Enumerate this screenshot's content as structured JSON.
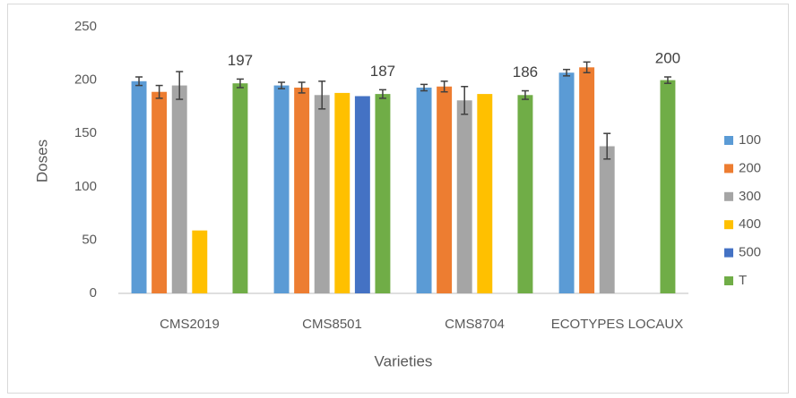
{
  "chart_data": {
    "type": "bar",
    "xlabel": "Varieties",
    "ylabel": "Doses",
    "categories": [
      "CMS2019",
      "CMS8501",
      "CMS8704",
      "ECOTYPES LOCAUX"
    ],
    "series": [
      {
        "name": "100",
        "color": "#5b9bd5",
        "values": [
          199,
          195,
          193,
          207
        ],
        "errors": [
          4,
          3,
          3,
          3
        ]
      },
      {
        "name": "200",
        "color": "#ed7d31",
        "values": [
          189,
          193,
          194,
          212
        ],
        "errors": [
          6,
          5,
          5,
          5
        ]
      },
      {
        "name": "300",
        "color": "#a5a5a5",
        "values": [
          195,
          186,
          181,
          138
        ],
        "errors": [
          13,
          13,
          13,
          12
        ]
      },
      {
        "name": "400",
        "color": "#ffc000",
        "values": [
          59,
          188,
          187,
          null
        ]
      },
      {
        "name": "500",
        "color": "#4472c4",
        "values": [
          null,
          185,
          null,
          null
        ]
      },
      {
        "name": "T",
        "color": "#70ad47",
        "values": [
          197,
          187,
          186,
          200
        ],
        "errors": [
          4,
          4,
          4,
          3
        ],
        "data_labels": true
      }
    ],
    "ylim": [
      0,
      250
    ],
    "yticks": [
      0,
      50,
      100,
      150,
      200,
      250
    ],
    "grid": false,
    "legend": "right"
  }
}
